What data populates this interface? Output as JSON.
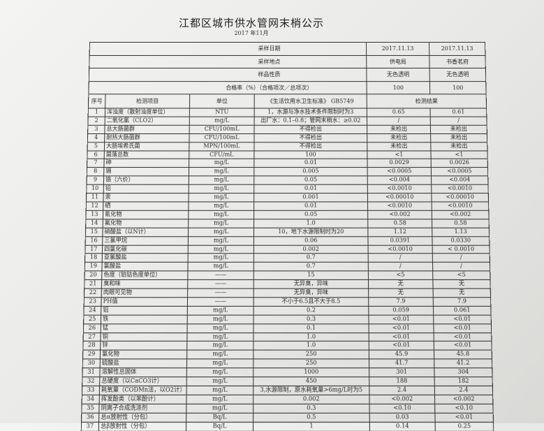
{
  "title": "江都区城市供水管网末梢公示",
  "subtitle": "2017 年11月",
  "meta_rows": [
    {
      "label": "采样日期",
      "values": [
        "2017.11.13",
        "2017.11.13"
      ]
    },
    {
      "label": "采样地点",
      "values": [
        "供电局",
        "书香茗府"
      ]
    },
    {
      "label": "样品性质",
      "values": [
        "无色透明",
        "无色透明"
      ]
    },
    {
      "label": "合格率（%）（合格项次／总项次）",
      "values": [
        "100",
        "100"
      ]
    }
  ],
  "columns": {
    "no": "序号",
    "item": "检测项目",
    "unit": "单位",
    "standard": "《生活饮用水卫生标准》 GB5749",
    "results": "检测结果"
  },
  "rows": [
    [
      "1",
      "浑浊度（散射浊度单位）",
      "NTU",
      "1，水源与净水技术条件限制时为3",
      "0.65",
      "0.61"
    ],
    [
      "2",
      "二氧化氯（CLO2）",
      "mg/L",
      "出厂水：0.1–0.8；管网末梢水：≥0.02",
      "/",
      "/"
    ],
    [
      "3",
      "总大肠菌群",
      "CFU/100mL",
      "不得检出",
      "未检出",
      "未检出"
    ],
    [
      "4",
      "耐热大肠菌群",
      "CFU/100mL",
      "不得检出",
      "未检出",
      "未检出"
    ],
    [
      "5",
      "大肠埃希氏菌",
      "MPN/100mL",
      "不得检出",
      "未检出",
      "未检出"
    ],
    [
      "6",
      "菌落总数",
      "CFU/mL",
      "100",
      "<1",
      "<1"
    ],
    [
      "7",
      "砷",
      "mg/L",
      "0.01",
      "0.0029",
      "0.0026"
    ],
    [
      "8",
      "镉",
      "mg/L",
      "0.005",
      "<0.0005",
      "<0.0005"
    ],
    [
      "9",
      "铬（六价）",
      "mg/L",
      "0.05",
      "<0.004",
      "<0.004"
    ],
    [
      "10",
      "铅",
      "mg/L",
      "0.01",
      "<0.0010",
      "<0.0010"
    ],
    [
      "11",
      "汞",
      "mg/L",
      "0.001",
      "<0.00010",
      "<0.00010"
    ],
    [
      "12",
      "硒",
      "mg/L",
      "0.01",
      "<0.0010",
      "<0.0010"
    ],
    [
      "13",
      "氰化物",
      "mg/L",
      "0.05",
      "<0.002",
      "<0.002"
    ],
    [
      "14",
      "氟化物",
      "mg/L",
      "1.0",
      "0.58",
      "0.58"
    ],
    [
      "15",
      "硝酸盐（以N计）",
      "mg/L",
      "10，地下水源限制时为20",
      "1.12",
      "1.13"
    ],
    [
      "16",
      "三氯甲烷",
      "mg/L",
      "0.06",
      "0.0391",
      "0.0330"
    ],
    [
      "17",
      "四氯化碳",
      "mg/L",
      "0.002",
      "<0.0010",
      "< 0.0010"
    ],
    [
      "18",
      "亚氯酸盐",
      "mg/L",
      "0.7",
      "/",
      "/"
    ],
    [
      "19",
      "氯酸盐",
      "mg/L",
      "0.7",
      "/",
      "/"
    ],
    [
      "20",
      "色度（铂钴色度单位）",
      "——",
      "15",
      "<5",
      "<5"
    ],
    [
      "21",
      "臭和味",
      "——",
      "无异臭，异味",
      "无",
      "无"
    ],
    [
      "22",
      "肉眼可见物",
      "——",
      "无异臭，异味",
      "无",
      "无"
    ],
    [
      "23",
      "PH值",
      "——",
      "不小于6.5且不大于8.5",
      "7.9",
      "7.9"
    ],
    [
      "24",
      "铝",
      "mg/L",
      "0.2",
      "0.059",
      "0.061"
    ],
    [
      "25",
      "铁",
      "mg/L",
      "0.3",
      "<0.01",
      "<0.01"
    ],
    [
      "26",
      "锰",
      "mg/L",
      "0.1",
      "<0.01",
      "<0.01"
    ],
    [
      "27",
      "铜",
      "mg/L",
      "1.0",
      "<0.01",
      "<0.01"
    ],
    [
      "28",
      "锌",
      "mg/L",
      "1.0",
      "<0.01",
      "<0.01"
    ],
    [
      "29",
      "氯化物",
      "mg/L",
      "250",
      "45.9",
      "45.8"
    ],
    [
      "30",
      "硫酸盐",
      "mg/L",
      "250",
      "41.7",
      "41.2"
    ],
    [
      "31",
      "溶解性总固体",
      "mg/L",
      "1000",
      "301",
      "304"
    ],
    [
      "32",
      "总硬度（以CaCO3计）",
      "mg/L",
      "450",
      "188",
      "182"
    ],
    [
      "33",
      "耗氧量（CODMn法，以O2计）",
      "mg/L",
      "3,水源限制，原水耗氧量>6mg/L时为5",
      "2.4",
      "2.4"
    ],
    [
      "34",
      "挥发酚类（以苯酚计）",
      "mg/L",
      "0.002",
      "<0.002",
      "<0.002"
    ],
    [
      "35",
      "阴离子合成洗涤剂",
      "mg/L",
      "0.3",
      "<0.10",
      "<0.10"
    ],
    [
      "36",
      "总α放射性（分包）",
      "Bq/L",
      "0.5",
      "0.03",
      "<0.01"
    ],
    [
      "37",
      "总β放射性（分包）",
      "Bq/L",
      "1",
      "0.14",
      "0.25"
    ]
  ]
}
